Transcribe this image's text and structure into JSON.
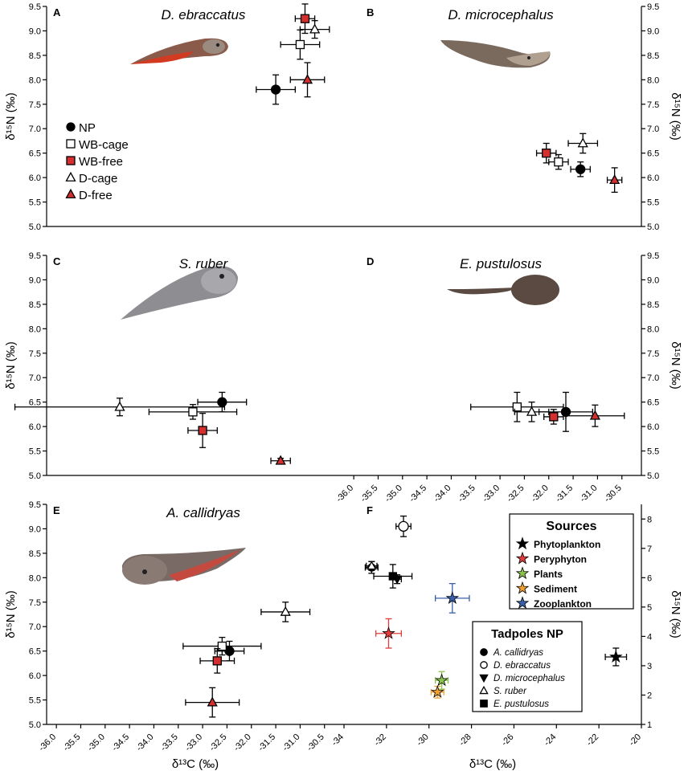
{
  "figure": {
    "x_label_bottom": "δ¹³C (‰)",
    "y_label": "δ¹⁵N (‰)",
    "colors": {
      "red": "#d32f2f",
      "black": "#000000"
    }
  },
  "chart_data": [
    {
      "id": "A",
      "type": "scatter",
      "title": "D. ebraccatus",
      "letter": "A",
      "xlim": [
        -36.2,
        -30.1
      ],
      "ylim": [
        5.0,
        9.5
      ],
      "yticks": [
        "5.0",
        "5.5",
        "6.0",
        "6.5",
        "7.0",
        "7.5",
        "8.0",
        "8.5",
        "9.0",
        "9.5"
      ],
      "legend": [
        {
          "label": "NP",
          "marker": "circle",
          "fill": "#000000"
        },
        {
          "label": "WB-cage",
          "marker": "square",
          "fill": "#ffffff"
        },
        {
          "label": "WB-free",
          "marker": "square",
          "fill": "#d32f2f"
        },
        {
          "label": "D-cage",
          "marker": "triangle",
          "fill": "#ffffff"
        },
        {
          "label": "D-free",
          "marker": "triangle",
          "fill": "#d32f2f"
        }
      ],
      "series": [
        {
          "name": "NP",
          "x": -31.5,
          "xerr": 0.4,
          "y": 7.8,
          "yerr": 0.3
        },
        {
          "name": "WB-cage",
          "x": -31.0,
          "xerr": 0.4,
          "y": 8.72,
          "yerr": 0.3
        },
        {
          "name": "WB-free",
          "x": -30.9,
          "xerr": 0.2,
          "y": 9.25,
          "yerr": 0.3
        },
        {
          "name": "D-cage",
          "x": -30.7,
          "xerr": 0.3,
          "y": 9.03,
          "yerr": 0.18
        },
        {
          "name": "D-free",
          "x": -30.85,
          "xerr": 0.35,
          "y": 8.0,
          "yerr": 0.35
        }
      ]
    },
    {
      "id": "B",
      "type": "scatter",
      "title": "D. microcephalus",
      "letter": "B",
      "xlim": [
        -36.2,
        -30.1
      ],
      "ylim": [
        5.0,
        9.5
      ],
      "yticks": [
        "5.0",
        "5.5",
        "6.0",
        "6.5",
        "7.0",
        "7.5",
        "8.0",
        "8.5",
        "9.0",
        "9.5"
      ],
      "series": [
        {
          "name": "NP",
          "x": -31.35,
          "xerr": 0.2,
          "y": 6.17,
          "yerr": 0.15
        },
        {
          "name": "WB-cage",
          "x": -31.8,
          "xerr": 0.2,
          "y": 6.32,
          "yerr": 0.15
        },
        {
          "name": "WB-free",
          "x": -32.05,
          "xerr": 0.2,
          "y": 6.5,
          "yerr": 0.2
        },
        {
          "name": "D-cage",
          "x": -31.3,
          "xerr": 0.3,
          "y": 6.7,
          "yerr": 0.2
        },
        {
          "name": "D-free",
          "x": -30.65,
          "xerr": 0.15,
          "y": 5.95,
          "yerr": 0.25
        }
      ]
    },
    {
      "id": "C",
      "type": "scatter",
      "title": "S. ruber",
      "letter": "C",
      "xlim": [
        -36.2,
        -30.1
      ],
      "ylim": [
        5.0,
        9.5
      ],
      "yticks": [
        "5.0",
        "5.5",
        "6.0",
        "6.5",
        "7.0",
        "7.5",
        "8.0",
        "8.5",
        "9.0",
        "9.5"
      ],
      "series": [
        {
          "name": "NP",
          "x": -32.6,
          "xerr": 0.5,
          "y": 6.5,
          "yerr": 0.2
        },
        {
          "name": "WB-cage",
          "x": -33.2,
          "xerr": 0.9,
          "y": 6.3,
          "yerr": 0.15
        },
        {
          "name": "WB-free",
          "x": -33.0,
          "xerr": 0.3,
          "y": 5.92,
          "yerr": 0.35
        },
        {
          "name": "D-cage",
          "x": -34.7,
          "xerr": 2.15,
          "y": 6.4,
          "yerr": 0.18
        },
        {
          "name": "D-free",
          "x": -31.4,
          "xerr": 0.2,
          "y": 5.3,
          "yerr": 0.05
        }
      ]
    },
    {
      "id": "D",
      "type": "scatter",
      "title": "E. pustulosus",
      "letter": "D",
      "xlim": [
        -36.2,
        -30.1
      ],
      "ylim": [
        5.0,
        9.5
      ],
      "xticks": [
        "-36.0",
        "-35.5",
        "-35.0",
        "-34.5",
        "-34.0",
        "-33.5",
        "-33.0",
        "-32.5",
        "-32.0",
        "-31.5",
        "-31.0",
        "-30.5"
      ],
      "yticks": [
        "5.0",
        "5.5",
        "6.0",
        "6.5",
        "7.0",
        "7.5",
        "8.0",
        "8.5",
        "9.0",
        "9.5"
      ],
      "series": [
        {
          "name": "NP",
          "x": -31.65,
          "xerr": 0.55,
          "y": 6.3,
          "yerr": 0.4
        },
        {
          "name": "WB-cage",
          "x": -32.65,
          "xerr": 0.95,
          "y": 6.4,
          "yerr": 0.3
        },
        {
          "name": "WB-free",
          "x": -31.9,
          "xerr": 0.2,
          "y": 6.2,
          "yerr": 0.15
        },
        {
          "name": "D-cage",
          "x": -32.35,
          "xerr": 0.35,
          "y": 6.3,
          "yerr": 0.2
        },
        {
          "name": "D-free",
          "x": -31.05,
          "xerr": 0.6,
          "y": 6.22,
          "yerr": 0.22
        }
      ]
    },
    {
      "id": "E",
      "type": "scatter",
      "title": "A. callidryas",
      "letter": "E",
      "xlim": [
        -36.2,
        -30.1
      ],
      "ylim": [
        5.0,
        9.5
      ],
      "xticks": [
        "-36.0",
        "-35.5",
        "-35.0",
        "-34.5",
        "-34.0",
        "-33.5",
        "-33.0",
        "-32.5",
        "-32.0",
        "-31.5",
        "-31.0",
        "-30.5"
      ],
      "yticks": [
        "5.0",
        "5.5",
        "6.0",
        "6.5",
        "7.0",
        "7.5",
        "8.0",
        "8.5",
        "9.0",
        "9.5"
      ],
      "series": [
        {
          "name": "NP",
          "x": -32.45,
          "xerr": 0.3,
          "y": 6.5,
          "yerr": 0.2
        },
        {
          "name": "WB-cage",
          "x": -32.6,
          "xerr": 0.8,
          "y": 6.6,
          "yerr": 0.18
        },
        {
          "name": "WB-free",
          "x": -32.7,
          "xerr": 0.35,
          "y": 6.3,
          "yerr": 0.25
        },
        {
          "name": "D-cage",
          "x": -31.3,
          "xerr": 0.5,
          "y": 7.3,
          "yerr": 0.2
        },
        {
          "name": "D-free",
          "x": -32.8,
          "xerr": 0.55,
          "y": 5.45,
          "yerr": 0.3
        }
      ]
    },
    {
      "id": "F",
      "type": "scatter",
      "letter": "F",
      "xlim": [
        -34,
        -20
      ],
      "ylim": [
        1,
        8.5
      ],
      "xticks": [
        "-34",
        "-32",
        "-30",
        "-28",
        "-26",
        "-24",
        "-22",
        "-20"
      ],
      "yticks": [
        "1",
        "2",
        "3",
        "4",
        "5",
        "6",
        "7",
        "8"
      ],
      "sources_title": "Sources",
      "sources": [
        {
          "name": "Phytoplankton",
          "color": "#000000",
          "x": -21.2,
          "xerr": 0.5,
          "y": 3.3,
          "yerr": 0.3
        },
        {
          "name": "Peryphyton",
          "color": "#e03c3c",
          "x": -31.9,
          "xerr": 0.6,
          "y": 4.1,
          "yerr": 0.5
        },
        {
          "name": "Plants",
          "color": "#8bc34a",
          "x": -29.4,
          "xerr": 0.3,
          "y": 2.5,
          "yerr": 0.3
        },
        {
          "name": "Sediment",
          "color": "#f0a030",
          "x": -29.6,
          "xerr": 0.3,
          "y": 2.1,
          "yerr": 0.2
        },
        {
          "name": "Zooplankton",
          "color": "#3a5fa8",
          "x": -28.9,
          "xerr": 0.8,
          "y": 5.3,
          "yerr": 0.5
        }
      ],
      "tadpoles_title": "Tadpoles NP",
      "tadpoles": [
        {
          "name": "A. callidryas",
          "marker": "circle",
          "fill": "#000000",
          "x": -32.7,
          "xerr": 0.3,
          "y": 6.35,
          "yerr": 0.2
        },
        {
          "name": "D. ebraccatus",
          "marker": "circle",
          "fill": "#ffffff",
          "x": -31.2,
          "xerr": 0.35,
          "y": 7.75,
          "yerr": 0.35
        },
        {
          "name": "D. microcephalus",
          "marker": "triangle-down",
          "fill": "#000000",
          "x": -31.5,
          "xerr": 0.2,
          "y": 5.95,
          "yerr": 0.15
        },
        {
          "name": "S. ruber",
          "marker": "triangle",
          "fill": "#ffffff",
          "x": -32.7,
          "xerr": 0.25,
          "y": 6.4,
          "yerr": 0.15
        },
        {
          "name": "E. pustulosus",
          "marker": "square",
          "fill": "#000000",
          "x": -31.7,
          "xerr": 0.9,
          "y": 6.05,
          "yerr": 0.4
        }
      ]
    }
  ]
}
